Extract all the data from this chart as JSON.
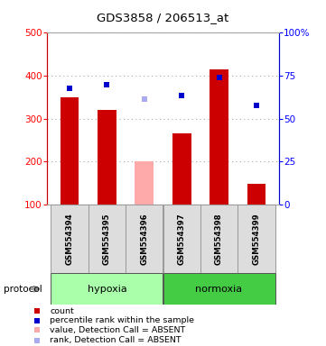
{
  "title": "GDS3858 / 206513_at",
  "samples": [
    "GSM554394",
    "GSM554395",
    "GSM554396",
    "GSM554397",
    "GSM554398",
    "GSM554399"
  ],
  "bar_values": [
    350,
    320,
    200,
    265,
    415,
    147
  ],
  "bar_colors": [
    "#cc0000",
    "#cc0000",
    "#ffaaaa",
    "#cc0000",
    "#cc0000",
    "#cc0000"
  ],
  "dot_values": [
    370,
    380,
    345,
    353,
    395,
    330
  ],
  "dot_colors": [
    "#0000cc",
    "#0000cc",
    "#aaaaee",
    "#0000cc",
    "#0000cc",
    "#0000cc"
  ],
  "ylim_left": [
    100,
    500
  ],
  "yticks_left": [
    100,
    200,
    300,
    400,
    500
  ],
  "yticks_right": [
    0,
    25,
    50,
    75,
    100
  ],
  "ytick_labels_right": [
    "0",
    "25",
    "50",
    "75",
    "100%"
  ],
  "hypoxia_color": "#aaffaa",
  "normoxia_color": "#44cc44",
  "background_color": "#ffffff",
  "legend_items": [
    {
      "label": "count",
      "color": "#cc0000"
    },
    {
      "label": "percentile rank within the sample",
      "color": "#0000cc"
    },
    {
      "label": "value, Detection Call = ABSENT",
      "color": "#ffaaaa"
    },
    {
      "label": "rank, Detection Call = ABSENT",
      "color": "#aaaaee"
    }
  ]
}
